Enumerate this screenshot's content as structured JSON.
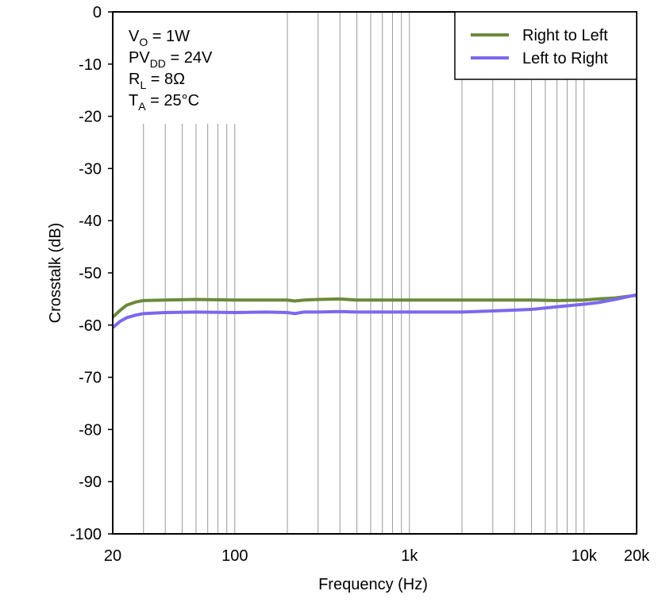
{
  "chart_data": {
    "type": "line",
    "xlabel": "Frequency (Hz)",
    "ylabel": "Crosstalk (dB)",
    "xscale": "log",
    "xlim": [
      20,
      20000
    ],
    "ylim": [
      -100,
      0
    ],
    "xticks": [
      20,
      100,
      {
        "value": 1000,
        "label": "1k"
      },
      {
        "value": 10000,
        "label": "10k"
      },
      {
        "value": 20000,
        "label": "20k"
      }
    ],
    "x_minor_ticks": [
      30,
      40,
      50,
      60,
      70,
      80,
      90,
      200,
      300,
      400,
      500,
      600,
      700,
      800,
      900,
      2000,
      3000,
      4000,
      5000,
      6000,
      7000,
      8000,
      9000
    ],
    "yticks": [
      0,
      -10,
      -20,
      -30,
      -40,
      -50,
      -60,
      -70,
      -80,
      -90,
      -100
    ],
    "grid": "x",
    "legend": "upper right",
    "annotations": [
      {
        "main": "V",
        "sub": "O",
        "rest": " = 1W"
      },
      {
        "main": "PV",
        "sub": "DD",
        "rest": " = 24V"
      },
      {
        "main": "R",
        "sub": "L",
        "rest": " = 8Ω"
      },
      {
        "main": "T",
        "sub": "A",
        "rest": " = 25°C"
      }
    ],
    "x": [
      20,
      22,
      24,
      27,
      30,
      40,
      60,
      100,
      150,
      200,
      220,
      250,
      300,
      400,
      500,
      700,
      1000,
      2000,
      3000,
      5000,
      7000,
      10000,
      12000,
      15000,
      20000
    ],
    "series": [
      {
        "name": "Right to Left",
        "color": "#6b8a3a",
        "values": [
          -58.5,
          -57.2,
          -56.2,
          -55.6,
          -55.3,
          -55.2,
          -55.1,
          -55.2,
          -55.2,
          -55.2,
          -55.4,
          -55.2,
          -55.1,
          -55.0,
          -55.2,
          -55.2,
          -55.2,
          -55.2,
          -55.2,
          -55.2,
          -55.3,
          -55.2,
          -55.0,
          -54.8,
          -54.3
        ]
      },
      {
        "name": "Left to Right",
        "color": "#7b68ee",
        "values": [
          -60.5,
          -59.3,
          -58.6,
          -58.1,
          -57.8,
          -57.6,
          -57.5,
          -57.6,
          -57.5,
          -57.6,
          -57.8,
          -57.5,
          -57.5,
          -57.4,
          -57.5,
          -57.5,
          -57.5,
          -57.5,
          -57.3,
          -57.0,
          -56.5,
          -56.0,
          -55.7,
          -55.1,
          -54.2
        ]
      }
    ]
  }
}
